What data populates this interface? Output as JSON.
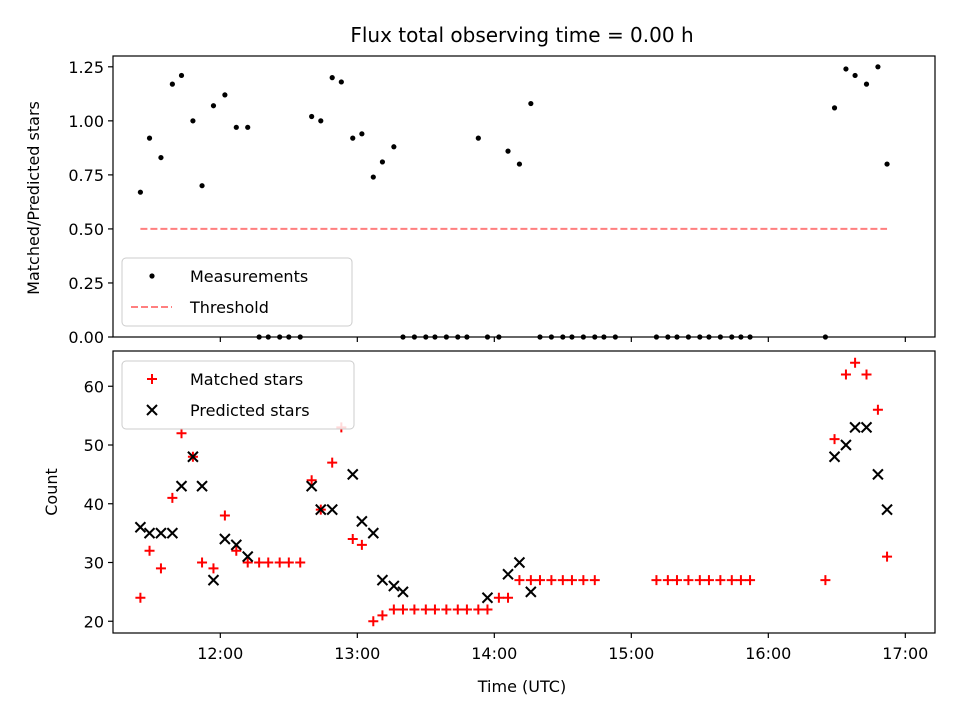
{
  "chart_data": [
    {
      "type": "scatter",
      "title": "Flux total observing time = 0.00 h",
      "xlabel": "",
      "ylabel": "Matched/Predicted stars",
      "xlim": [
        "11:13",
        "17:13"
      ],
      "ylim": [
        0,
        1.3
      ],
      "yticks": [
        0,
        0.25,
        0.5,
        0.75,
        1.0,
        1.25
      ],
      "ytick_labels": [
        "0.00",
        "0.25",
        "0.50",
        "0.75",
        "1.00",
        "1.25"
      ],
      "xticks": [
        "12:00",
        "13:00",
        "14:00",
        "15:00",
        "16:00",
        "17:00"
      ],
      "legend_position": "lower-left",
      "legend": [
        "Measurements",
        "Threshold"
      ],
      "colors": {
        "measurements": "#000000",
        "threshold": "#ff7f7f"
      },
      "series": [
        {
          "name": "Measurements",
          "marker": "dot",
          "x": [
            "11:25",
            "11:29",
            "11:34",
            "11:39",
            "11:43",
            "11:48",
            "11:52",
            "11:57",
            "12:02",
            "12:07",
            "12:12",
            "12:17",
            "12:21",
            "12:26",
            "12:30",
            "12:35",
            "12:40",
            "12:44",
            "12:49",
            "12:53",
            "12:58",
            "13:02",
            "13:07",
            "13:11",
            "13:16",
            "13:20",
            "13:25",
            "13:30",
            "13:34",
            "13:39",
            "13:44",
            "13:48",
            "13:53",
            "13:57",
            "14:02",
            "14:06",
            "14:11",
            "14:16",
            "14:20",
            "14:25",
            "14:30",
            "14:34",
            "14:39",
            "14:44",
            "14:48",
            "14:53",
            "15:11",
            "15:16",
            "15:20",
            "15:25",
            "15:30",
            "15:34",
            "15:39",
            "15:44",
            "15:48",
            "15:52",
            "16:25",
            "16:29",
            "16:34",
            "16:38",
            "16:43",
            "16:48",
            "16:52"
          ],
          "y": [
            0.67,
            0.92,
            0.83,
            1.17,
            1.21,
            1.0,
            0.7,
            1.07,
            1.12,
            0.97,
            0.97,
            0,
            0,
            0,
            0,
            0,
            1.02,
            1.0,
            1.2,
            1.18,
            0.92,
            0.94,
            0.74,
            0.81,
            0.88,
            0,
            0,
            0,
            0,
            0,
            0,
            0,
            0.92,
            0,
            0,
            0.86,
            0.8,
            1.08,
            0,
            0,
            0,
            0,
            0,
            0,
            0,
            0,
            0,
            0,
            0,
            0,
            0,
            0,
            0,
            0,
            0,
            0,
            0,
            1.06,
            1.24,
            1.21,
            1.17,
            1.25,
            0.8
          ]
        },
        {
          "name": "Threshold",
          "style": "dashed",
          "x": [
            "11:25",
            "16:52"
          ],
          "y": [
            0.5,
            0.5
          ]
        }
      ]
    },
    {
      "type": "scatter",
      "title": "",
      "xlabel": "Time (UTC)",
      "ylabel": "Count",
      "xlim": [
        "11:13",
        "17:13"
      ],
      "ylim": [
        18,
        66
      ],
      "yticks": [
        20,
        30,
        40,
        50,
        60
      ],
      "xticks": [
        "12:00",
        "13:00",
        "14:00",
        "15:00",
        "16:00",
        "17:00"
      ],
      "legend_position": "upper-left",
      "legend": [
        "Matched stars",
        "Predicted stars"
      ],
      "colors": {
        "matched": "#ff0000",
        "predicted": "#000000"
      },
      "series": [
        {
          "name": "Matched stars",
          "marker": "plus",
          "x": [
            "11:25",
            "11:29",
            "11:34",
            "11:39",
            "11:43",
            "11:48",
            "11:52",
            "11:57",
            "12:02",
            "12:07",
            "12:12",
            "12:17",
            "12:21",
            "12:26",
            "12:30",
            "12:35",
            "12:40",
            "12:44",
            "12:49",
            "12:53",
            "12:58",
            "13:02",
            "13:07",
            "13:11",
            "13:16",
            "13:20",
            "13:25",
            "13:30",
            "13:34",
            "13:39",
            "13:44",
            "13:48",
            "13:53",
            "13:57",
            "14:02",
            "14:06",
            "14:11",
            "14:16",
            "14:20",
            "14:25",
            "14:30",
            "14:34",
            "14:39",
            "14:44",
            "15:11",
            "15:16",
            "15:20",
            "15:25",
            "15:30",
            "15:34",
            "15:39",
            "15:44",
            "15:48",
            "15:52",
            "16:25",
            "16:29",
            "16:34",
            "16:38",
            "16:43",
            "16:48",
            "16:52"
          ],
          "y": [
            24,
            32,
            29,
            41,
            52,
            48,
            30,
            29,
            38,
            32,
            30,
            30,
            30,
            30,
            30,
            30,
            44,
            39,
            47,
            53,
            34,
            33,
            20,
            21,
            22,
            22,
            22,
            22,
            22,
            22,
            22,
            22,
            22,
            22,
            24,
            24,
            27,
            27,
            27,
            27,
            27,
            27,
            27,
            27,
            27,
            27,
            27,
            27,
            27,
            27,
            27,
            27,
            27,
            27,
            27,
            51,
            62,
            64,
            62,
            56,
            31
          ]
        },
        {
          "name": "Predicted stars",
          "marker": "x",
          "x": [
            "11:25",
            "11:29",
            "11:34",
            "11:39",
            "11:43",
            "11:48",
            "11:52",
            "11:57",
            "12:02",
            "12:07",
            "12:12",
            "12:40",
            "12:44",
            "12:49",
            "12:58",
            "13:02",
            "13:07",
            "13:11",
            "13:16",
            "13:20",
            "13:57",
            "14:06",
            "14:11",
            "14:16",
            "16:29",
            "16:34",
            "16:38",
            "16:43",
            "16:48",
            "16:52"
          ],
          "y": [
            36,
            35,
            35,
            35,
            43,
            48,
            43,
            27,
            34,
            33,
            31,
            43,
            39,
            39,
            45,
            37,
            35,
            27,
            26,
            25,
            24,
            28,
            30,
            25,
            48,
            50,
            53,
            53,
            45,
            39
          ]
        }
      ]
    }
  ]
}
